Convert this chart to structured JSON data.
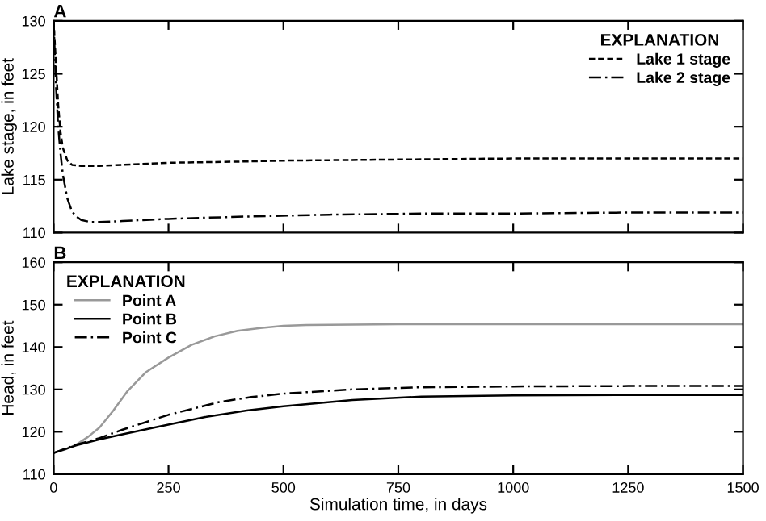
{
  "chart_data": [
    {
      "type": "line",
      "title": "A",
      "ylabel": "Lake stage, in feet",
      "legend_title": "EXPLANATION",
      "legend": "top right",
      "grid": false,
      "tick_labels": "y",
      "xlim": [
        0,
        1500
      ],
      "xticks": [
        0,
        250,
        500,
        750,
        1000,
        1250,
        1500
      ],
      "ylim": [
        110,
        130
      ],
      "yticks": [
        110,
        115,
        120,
        125,
        130
      ],
      "series": [
        {
          "name": "Lake 1 stage",
          "color": "#000000",
          "line_style": "dashed",
          "x": [
            0,
            5,
            10,
            15,
            20,
            30,
            40,
            60,
            100,
            150,
            250,
            400,
            500,
            750,
            1000,
            1250,
            1500
          ],
          "values": [
            130,
            126,
            122,
            119.5,
            118,
            116.8,
            116.4,
            116.3,
            116.3,
            116.4,
            116.6,
            116.7,
            116.8,
            116.9,
            117,
            117,
            117
          ]
        },
        {
          "name": "Lake 2 stage",
          "color": "#000000",
          "line_style": "dashdot",
          "x": [
            0,
            5,
            10,
            15,
            20,
            30,
            40,
            50,
            60,
            80,
            100,
            150,
            250,
            400,
            600,
            800,
            1000,
            1250,
            1500
          ],
          "values": [
            130,
            124,
            120,
            117.5,
            115.5,
            113.2,
            112,
            111.5,
            111.2,
            111,
            111,
            111.1,
            111.3,
            111.5,
            111.7,
            111.8,
            111.8,
            111.9,
            111.9
          ]
        }
      ]
    },
    {
      "type": "line",
      "title": "B",
      "ylabel": "Head, in feet",
      "xlabel": "Simulation time, in days",
      "legend_title": "EXPLANATION",
      "legend": "top left",
      "grid": false,
      "xlim": [
        0,
        1500
      ],
      "xticks": [
        0,
        250,
        500,
        750,
        1000,
        1250,
        1500
      ],
      "ylim": [
        110,
        160
      ],
      "yticks": [
        110,
        120,
        130,
        140,
        150,
        160
      ],
      "series": [
        {
          "name": "Point A",
          "color": "#999999",
          "line_style": "solid",
          "x": [
            0,
            25,
            50,
            75,
            100,
            130,
            160,
            200,
            250,
            300,
            350,
            400,
            450,
            500,
            550,
            650,
            750,
            1000,
            1250,
            1500
          ],
          "values": [
            115,
            115.8,
            117,
            118.8,
            121,
            125,
            129.5,
            134,
            137.5,
            140.5,
            142.5,
            143.8,
            144.5,
            145,
            145.2,
            145.3,
            145.4,
            145.4,
            145.4,
            145.4
          ]
        },
        {
          "name": "Point B",
          "color": "#000000",
          "line_style": "solid",
          "x": [
            0,
            50,
            100,
            150,
            220,
            330,
            420,
            500,
            650,
            800,
            1000,
            1250,
            1500
          ],
          "values": [
            115,
            116.8,
            118.2,
            119.4,
            121,
            123.5,
            125,
            126,
            127.5,
            128.3,
            128.6,
            128.7,
            128.7
          ]
        },
        {
          "name": "Point C",
          "color": "#000000",
          "line_style": "dashdot",
          "x": [
            0,
            50,
            100,
            150,
            250,
            360,
            430,
            500,
            650,
            800,
            1000,
            1250,
            1500
          ],
          "values": [
            115,
            117,
            118.5,
            120.5,
            124,
            127,
            128.2,
            129,
            130,
            130.5,
            130.7,
            130.8,
            130.8
          ]
        }
      ]
    }
  ]
}
